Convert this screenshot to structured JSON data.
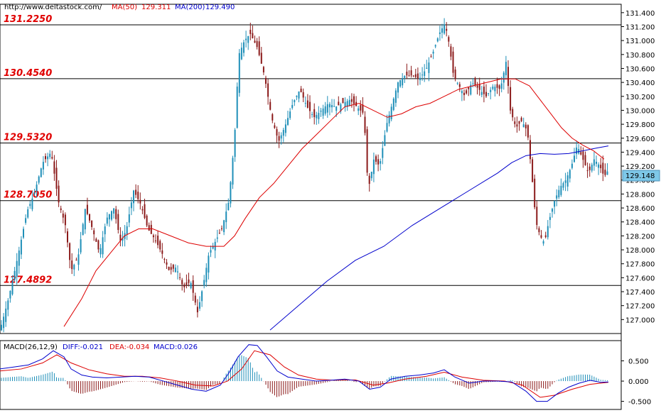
{
  "header": {
    "site": "http://www.deltastock.com/",
    "ma50_label": "MA(50)",
    "ma50_value": "129.311",
    "ma200_label": "MA(200)",
    "ma200_value": "129.490",
    "ma50_color": "#dd0000",
    "ma200_color": "#0000cc"
  },
  "price_tag": "129.148",
  "macd_header": {
    "name": "MACD(26,12,9)",
    "diff": "DIFF:-0.021",
    "dea": "DEA:-0.034",
    "macd": "MACD:0.026"
  },
  "chart_data": [
    {
      "type": "candlestick",
      "ylim": [
        126.8,
        131.5
      ],
      "y_ticks": [
        "131.400",
        "131.200",
        "131.000",
        "130.800",
        "130.600",
        "130.400",
        "130.200",
        "130.000",
        "129.800",
        "129.600",
        "129.400",
        "129.200",
        "129.000",
        "128.800",
        "128.600",
        "128.400",
        "128.200",
        "128.000",
        "127.800",
        "127.600",
        "127.400",
        "127.200",
        "127.000"
      ],
      "levels": [
        {
          "label": "131.2250",
          "value": 131.225
        },
        {
          "label": "130.4540",
          "value": 130.454
        },
        {
          "label": "129.5320",
          "value": 129.532
        },
        {
          "label": "128.7050",
          "value": 128.705
        },
        {
          "label": "127.4892",
          "value": 127.4892
        }
      ],
      "level_color": "#e00000",
      "up_color": "#1f8fb8",
      "down_color": "#8b1a1a",
      "last_price": 129.148,
      "price_path": [
        [
          0,
          126.85
        ],
        [
          12,
          127.3
        ],
        [
          25,
          127.9
        ],
        [
          38,
          128.55
        ],
        [
          48,
          128.8
        ],
        [
          60,
          129.25
        ],
        [
          72,
          129.4
        ],
        [
          82,
          128.7
        ],
        [
          92,
          128.35
        ],
        [
          100,
          127.7
        ],
        [
          110,
          127.9
        ],
        [
          120,
          128.6
        ],
        [
          130,
          128.3
        ],
        [
          140,
          127.95
        ],
        [
          150,
          128.45
        ],
        [
          160,
          128.6
        ],
        [
          170,
          128.1
        ],
        [
          178,
          128.3
        ],
        [
          188,
          128.85
        ],
        [
          198,
          128.65
        ],
        [
          208,
          128.3
        ],
        [
          218,
          128.15
        ],
        [
          228,
          127.95
        ],
        [
          238,
          127.7
        ],
        [
          248,
          127.75
        ],
        [
          258,
          127.45
        ],
        [
          268,
          127.55
        ],
        [
          278,
          127.1
        ],
        [
          286,
          127.5
        ],
        [
          294,
          127.95
        ],
        [
          302,
          128.1
        ],
        [
          312,
          128.3
        ],
        [
          322,
          128.7
        ],
        [
          330,
          129.6
        ],
        [
          336,
          130.8
        ],
        [
          344,
          131.0
        ],
        [
          352,
          131.1
        ],
        [
          362,
          130.9
        ],
        [
          372,
          130.5
        ],
        [
          382,
          129.9
        ],
        [
          392,
          129.55
        ],
        [
          402,
          129.8
        ],
        [
          412,
          130.1
        ],
        [
          422,
          130.3
        ],
        [
          432,
          130.05
        ],
        [
          442,
          129.9
        ],
        [
          452,
          130.0
        ],
        [
          462,
          130.1
        ],
        [
          472,
          130.05
        ],
        [
          482,
          130.1
        ],
        [
          492,
          130.15
        ],
        [
          502,
          130.05
        ],
        [
          512,
          129.95
        ],
        [
          518,
          128.85
        ],
        [
          526,
          129.3
        ],
        [
          534,
          129.2
        ],
        [
          544,
          129.8
        ],
        [
          552,
          130.1
        ],
        [
          560,
          130.4
        ],
        [
          570,
          130.5
        ],
        [
          580,
          130.5
        ],
        [
          590,
          130.45
        ],
        [
          600,
          130.6
        ],
        [
          610,
          130.85
        ],
        [
          618,
          131.1
        ],
        [
          626,
          131.25
        ],
        [
          632,
          130.95
        ],
        [
          638,
          130.5
        ],
        [
          646,
          130.35
        ],
        [
          654,
          130.2
        ],
        [
          664,
          130.4
        ],
        [
          674,
          130.3
        ],
        [
          684,
          130.2
        ],
        [
          694,
          130.35
        ],
        [
          704,
          130.3
        ],
        [
          712,
          130.7
        ],
        [
          718,
          130.0
        ],
        [
          726,
          129.75
        ],
        [
          734,
          129.85
        ],
        [
          742,
          129.7
        ],
        [
          748,
          129.1
        ],
        [
          754,
          128.4
        ],
        [
          760,
          128.2
        ],
        [
          766,
          128.1
        ],
        [
          772,
          128.4
        ],
        [
          780,
          128.7
        ],
        [
          788,
          128.9
        ],
        [
          796,
          129.0
        ],
        [
          804,
          129.2
        ],
        [
          812,
          129.5
        ],
        [
          820,
          129.3
        ],
        [
          828,
          129.1
        ],
        [
          836,
          129.3
        ],
        [
          844,
          129.2
        ],
        [
          850,
          129.05
        ],
        [
          856,
          129.148
        ]
      ],
      "ma50_path": [
        [
          90,
          126.9
        ],
        [
          115,
          127.3
        ],
        [
          135,
          127.7
        ],
        [
          155,
          127.95
        ],
        [
          175,
          128.2
        ],
        [
          195,
          128.3
        ],
        [
          215,
          128.3
        ],
        [
          240,
          128.2
        ],
        [
          265,
          128.1
        ],
        [
          290,
          128.05
        ],
        [
          315,
          128.05
        ],
        [
          330,
          128.2
        ],
        [
          345,
          128.45
        ],
        [
          365,
          128.75
        ],
        [
          385,
          128.95
        ],
        [
          405,
          129.2
        ],
        [
          425,
          129.45
        ],
        [
          445,
          129.65
        ],
        [
          465,
          129.85
        ],
        [
          485,
          130.05
        ],
        [
          505,
          130.1
        ],
        [
          525,
          130.0
        ],
        [
          545,
          129.9
        ],
        [
          565,
          129.95
        ],
        [
          585,
          130.05
        ],
        [
          605,
          130.1
        ],
        [
          625,
          130.2
        ],
        [
          645,
          130.3
        ],
        [
          665,
          130.35
        ],
        [
          685,
          130.4
        ],
        [
          705,
          130.45
        ],
        [
          725,
          130.45
        ],
        [
          745,
          130.35
        ],
        [
          760,
          130.15
        ],
        [
          775,
          129.95
        ],
        [
          790,
          129.75
        ],
        [
          805,
          129.6
        ],
        [
          820,
          129.5
        ],
        [
          835,
          129.42
        ],
        [
          850,
          129.3
        ]
      ],
      "ma200_path": [
        [
          380,
          126.85
        ],
        [
          420,
          127.2
        ],
        [
          460,
          127.55
        ],
        [
          500,
          127.85
        ],
        [
          540,
          128.05
        ],
        [
          580,
          128.35
        ],
        [
          620,
          128.6
        ],
        [
          660,
          128.85
        ],
        [
          700,
          129.1
        ],
        [
          720,
          129.25
        ],
        [
          740,
          129.35
        ],
        [
          760,
          129.38
        ],
        [
          780,
          129.37
        ],
        [
          800,
          129.38
        ],
        [
          820,
          129.42
        ],
        [
          840,
          129.46
        ],
        [
          856,
          129.49
        ]
      ]
    },
    {
      "type": "macd",
      "ylim": [
        -0.7,
        1.0
      ],
      "y_ticks": [
        "0.500",
        "0.000",
        "-0.500"
      ],
      "diff_color": "#0000cc",
      "dea_color": "#dd0000",
      "hist_up_color": "#1f8fb8",
      "hist_down_color": "#8b1a1a",
      "diff_path": [
        [
          0,
          0.3
        ],
        [
          20,
          0.35
        ],
        [
          40,
          0.4
        ],
        [
          60,
          0.55
        ],
        [
          75,
          0.75
        ],
        [
          90,
          0.6
        ],
        [
          100,
          0.3
        ],
        [
          115,
          0.15
        ],
        [
          130,
          0.1
        ],
        [
          150,
          0.08
        ],
        [
          170,
          0.1
        ],
        [
          190,
          0.12
        ],
        [
          210,
          0.1
        ],
        [
          230,
          0.0
        ],
        [
          250,
          -0.1
        ],
        [
          270,
          -0.2
        ],
        [
          290,
          -0.25
        ],
        [
          310,
          -0.1
        ],
        [
          322,
          0.2
        ],
        [
          335,
          0.6
        ],
        [
          350,
          0.9
        ],
        [
          362,
          0.88
        ],
        [
          375,
          0.6
        ],
        [
          390,
          0.25
        ],
        [
          405,
          0.1
        ],
        [
          425,
          0.05
        ],
        [
          445,
          0.0
        ],
        [
          465,
          0.02
        ],
        [
          485,
          0.05
        ],
        [
          505,
          0.0
        ],
        [
          520,
          -0.2
        ],
        [
          535,
          -0.15
        ],
        [
          550,
          0.05
        ],
        [
          570,
          0.12
        ],
        [
          590,
          0.15
        ],
        [
          610,
          0.2
        ],
        [
          625,
          0.28
        ],
        [
          640,
          0.1
        ],
        [
          660,
          -0.05
        ],
        [
          680,
          0.0
        ],
        [
          700,
          0.0
        ],
        [
          720,
          -0.02
        ],
        [
          740,
          -0.25
        ],
        [
          755,
          -0.5
        ],
        [
          770,
          -0.5
        ],
        [
          785,
          -0.3
        ],
        [
          800,
          -0.15
        ],
        [
          815,
          -0.05
        ],
        [
          830,
          0.02
        ],
        [
          845,
          -0.03
        ],
        [
          856,
          -0.02
        ]
      ],
      "dea_path": [
        [
          0,
          0.25
        ],
        [
          30,
          0.3
        ],
        [
          60,
          0.45
        ],
        [
          80,
          0.65
        ],
        [
          100,
          0.45
        ],
        [
          125,
          0.28
        ],
        [
          150,
          0.18
        ],
        [
          175,
          0.12
        ],
        [
          200,
          0.12
        ],
        [
          225,
          0.08
        ],
        [
          250,
          0.0
        ],
        [
          275,
          -0.1
        ],
        [
          300,
          -0.12
        ],
        [
          320,
          0.0
        ],
        [
          340,
          0.3
        ],
        [
          358,
          0.75
        ],
        [
          380,
          0.65
        ],
        [
          400,
          0.35
        ],
        [
          420,
          0.15
        ],
        [
          445,
          0.05
        ],
        [
          470,
          0.02
        ],
        [
          500,
          0.03
        ],
        [
          525,
          -0.1
        ],
        [
          545,
          -0.05
        ],
        [
          570,
          0.05
        ],
        [
          600,
          0.12
        ],
        [
          625,
          0.22
        ],
        [
          650,
          0.1
        ],
        [
          680,
          0.02
        ],
        [
          710,
          0.0
        ],
        [
          735,
          -0.1
        ],
        [
          760,
          -0.4
        ],
        [
          780,
          -0.35
        ],
        [
          805,
          -0.2
        ],
        [
          830,
          -0.08
        ],
        [
          856,
          -0.03
        ]
      ]
    }
  ]
}
